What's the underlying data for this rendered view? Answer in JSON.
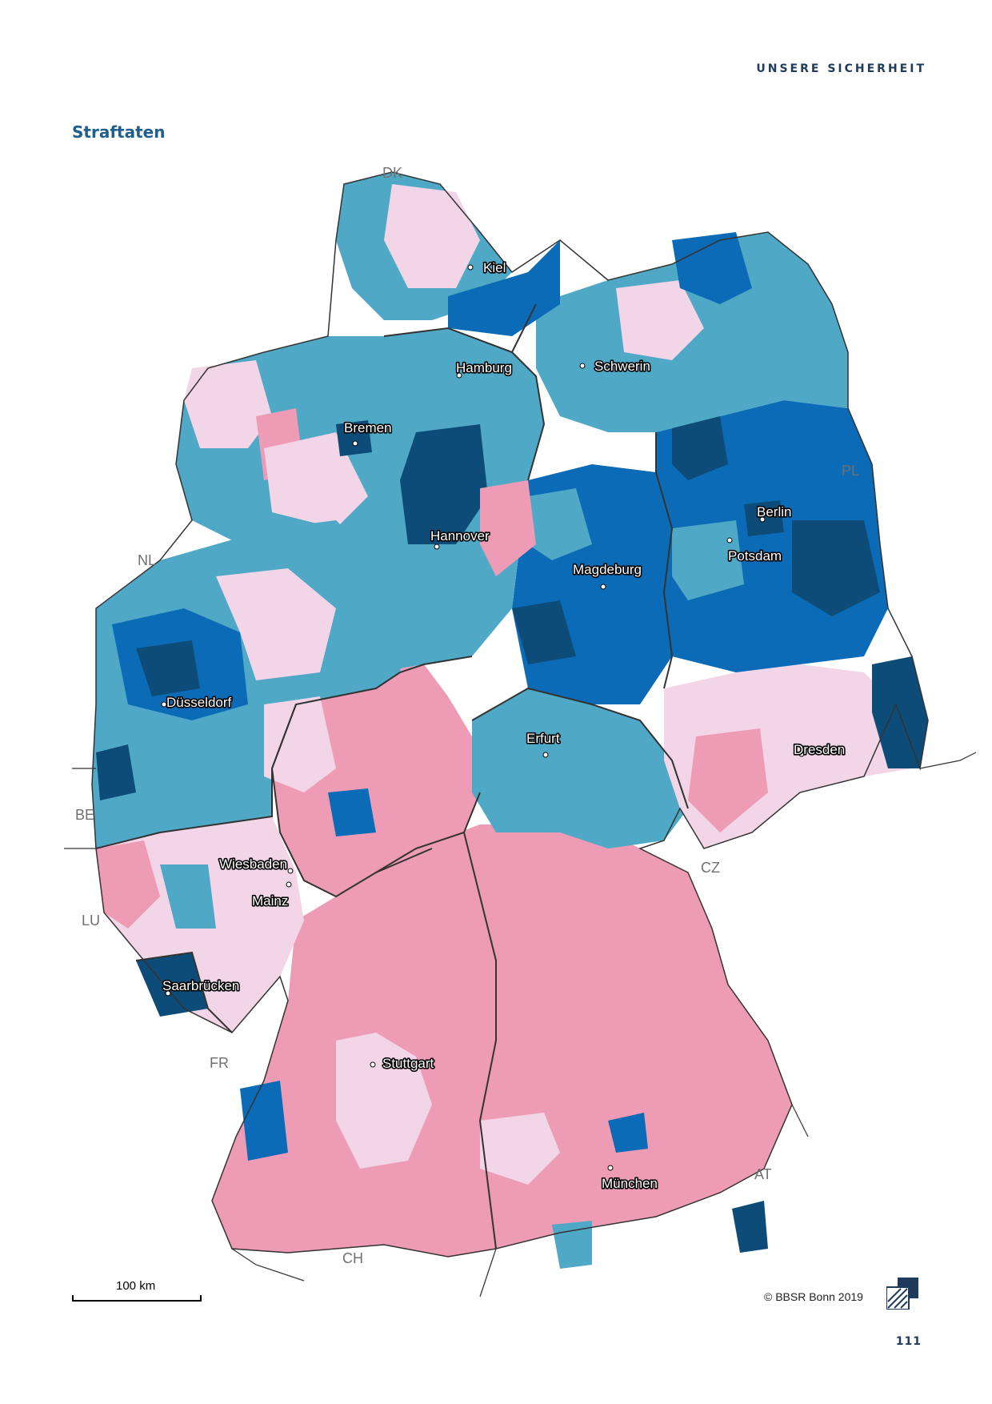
{
  "header": {
    "section": "UNSERE SICHERHEIT"
  },
  "title": "Straftaten",
  "colors": {
    "light_pink": "#f2d5e6",
    "pink": "#ee9bb6",
    "light_blue": "#4ea8c6",
    "mid_blue": "#0b6bb6",
    "dark_blue": "#0d4c78",
    "border": "#333333"
  },
  "cities": [
    {
      "name": "Kiel"
    },
    {
      "name": "Hamburg"
    },
    {
      "name": "Schwerin"
    },
    {
      "name": "Bremen"
    },
    {
      "name": "Berlin"
    },
    {
      "name": "Potsdam"
    },
    {
      "name": "Hannover"
    },
    {
      "name": "Magdeburg"
    },
    {
      "name": "Düsseldorf"
    },
    {
      "name": "Erfurt"
    },
    {
      "name": "Dresden"
    },
    {
      "name": "Wiesbaden"
    },
    {
      "name": "Mainz"
    },
    {
      "name": "Saarbrücken"
    },
    {
      "name": "Stuttgart"
    },
    {
      "name": "München"
    }
  ],
  "countries": [
    "DK",
    "PL",
    "NL",
    "BE",
    "LU",
    "CZ",
    "FR",
    "AT",
    "CH"
  ],
  "scale": {
    "label": "100 km"
  },
  "copyright": "© BBSR Bonn 2019",
  "page_number": "111"
}
